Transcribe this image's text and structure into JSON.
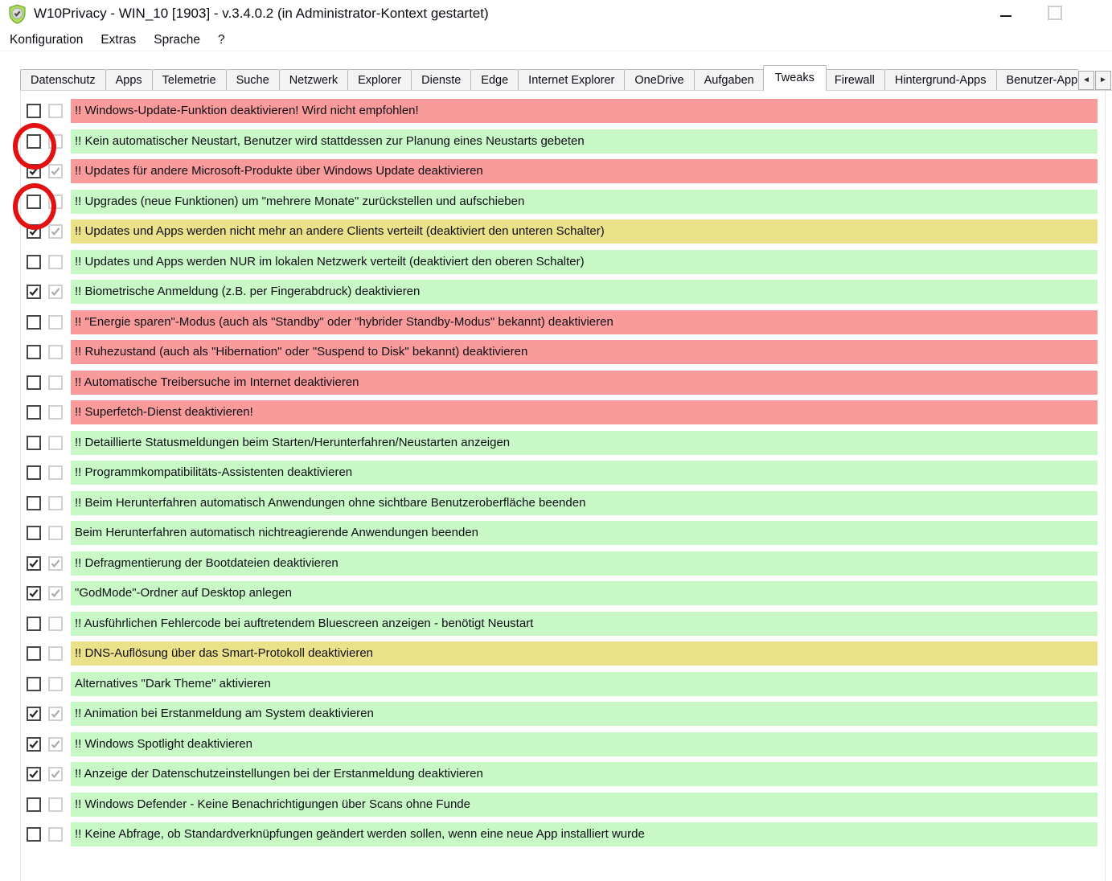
{
  "window": {
    "title": "W10Privacy - WIN_10 [1903]  - v.3.4.0.2 (in Administrator-Kontext gestartet)",
    "icon": "shield-check-icon"
  },
  "menu": {
    "items": [
      {
        "id": "konfiguration",
        "label": "Konfiguration"
      },
      {
        "id": "extras",
        "label": "Extras"
      },
      {
        "id": "sprache",
        "label": "Sprache"
      },
      {
        "id": "hilfe",
        "label": "?"
      }
    ]
  },
  "tabs": {
    "selected": "Tweaks",
    "scroll_left": "◄",
    "scroll_right": "►",
    "items": [
      {
        "id": "datenschutz",
        "label": "Datenschutz",
        "selected": false
      },
      {
        "id": "apps",
        "label": "Apps",
        "selected": false
      },
      {
        "id": "telemetrie",
        "label": "Telemetrie",
        "selected": false
      },
      {
        "id": "suche",
        "label": "Suche",
        "selected": false
      },
      {
        "id": "netzwerk",
        "label": "Netzwerk",
        "selected": false
      },
      {
        "id": "explorer",
        "label": "Explorer",
        "selected": false
      },
      {
        "id": "dienste",
        "label": "Dienste",
        "selected": false
      },
      {
        "id": "edge",
        "label": "Edge",
        "selected": false
      },
      {
        "id": "internet-explorer",
        "label": "Internet Explorer",
        "selected": false
      },
      {
        "id": "onedrive",
        "label": "OneDrive",
        "selected": false
      },
      {
        "id": "aufgaben",
        "label": "Aufgaben",
        "selected": false
      },
      {
        "id": "tweaks",
        "label": "Tweaks",
        "selected": true
      },
      {
        "id": "firewall",
        "label": "Firewall",
        "selected": false
      },
      {
        "id": "hintergrund-apps",
        "label": "Hintergrund-Apps",
        "selected": false
      },
      {
        "id": "benutzer-app",
        "label": "Benutzer-App",
        "selected": false
      }
    ]
  },
  "colors": {
    "row_red": "#fa9b9b",
    "row_green": "#c8f8c5",
    "row_yellow": "#ebe188",
    "annotation_circle": "#e31212",
    "check_primary": "#262626",
    "check_readonly": "#ababab"
  },
  "rows": [
    {
      "label": "!! Windows-Update-Funktion deaktivieren! Wird nicht empfohlen!",
      "color": "row_red",
      "checked": false,
      "checked_readonly": false,
      "circled": false
    },
    {
      "label": "!! Kein automatischer Neustart, Benutzer wird stattdessen zur Planung eines Neustarts gebeten",
      "color": "row_green",
      "checked": false,
      "checked_readonly": false,
      "circled": true
    },
    {
      "label": "!! Updates für andere Microsoft-Produkte über Windows Update deaktivieren",
      "color": "row_red",
      "checked": true,
      "checked_readonly": true,
      "circled": false
    },
    {
      "label": "!! Upgrades (neue Funktionen) um \"mehrere Monate\" zurückstellen und aufschieben",
      "color": "row_green",
      "checked": false,
      "checked_readonly": false,
      "circled": true
    },
    {
      "label": "!! Updates und Apps werden nicht mehr an andere Clients verteilt (deaktiviert den unteren Schalter)",
      "color": "row_yellow",
      "checked": true,
      "checked_readonly": true,
      "circled": false
    },
    {
      "label": "!! Updates und Apps werden NUR im lokalen Netzwerk verteilt (deaktiviert den oberen Schalter)",
      "color": "row_green",
      "checked": false,
      "checked_readonly": false,
      "circled": false
    },
    {
      "label": "!! Biometrische Anmeldung (z.B. per Fingerabdruck) deaktivieren",
      "color": "row_green",
      "checked": true,
      "checked_readonly": true,
      "circled": false
    },
    {
      "label": "!! \"Energie sparen\"-Modus (auch als \"Standby\" oder \"hybrider Standby-Modus\" bekannt) deaktivieren",
      "color": "row_red",
      "checked": false,
      "checked_readonly": false,
      "circled": false
    },
    {
      "label": "!! Ruhezustand (auch als \"Hibernation\" oder \"Suspend to Disk\" bekannt) deaktivieren",
      "color": "row_red",
      "checked": false,
      "checked_readonly": false,
      "circled": false
    },
    {
      "label": "!! Automatische Treibersuche im Internet deaktivieren",
      "color": "row_red",
      "checked": false,
      "checked_readonly": false,
      "circled": false
    },
    {
      "label": "!! Superfetch-Dienst deaktivieren!",
      "color": "row_red",
      "checked": false,
      "checked_readonly": false,
      "circled": false
    },
    {
      "label": "!! Detaillierte Statusmeldungen beim Starten/Herunterfahren/Neustarten anzeigen",
      "color": "row_green",
      "checked": false,
      "checked_readonly": false,
      "circled": false
    },
    {
      "label": "!! Programmkompatibilitäts-Assistenten deaktivieren",
      "color": "row_green",
      "checked": false,
      "checked_readonly": false,
      "circled": false
    },
    {
      "label": "!! Beim Herunterfahren automatisch Anwendungen ohne sichtbare Benutzeroberfläche beenden",
      "color": "row_green",
      "checked": false,
      "checked_readonly": false,
      "circled": false
    },
    {
      "label": "Beim Herunterfahren automatisch nichtreagierende Anwendungen beenden",
      "color": "row_green",
      "checked": false,
      "checked_readonly": false,
      "circled": false
    },
    {
      "label": "!! Defragmentierung der Bootdateien deaktivieren",
      "color": "row_green",
      "checked": true,
      "checked_readonly": true,
      "circled": false
    },
    {
      "label": "\"GodMode\"-Ordner auf Desktop anlegen",
      "color": "row_green",
      "checked": true,
      "checked_readonly": true,
      "circled": false
    },
    {
      "label": "!! Ausführlichen Fehlercode bei auftretendem Bluescreen anzeigen - benötigt Neustart",
      "color": "row_green",
      "checked": false,
      "checked_readonly": false,
      "circled": false
    },
    {
      "label": "!! DNS-Auflösung über das Smart-Protokoll deaktivieren",
      "color": "row_yellow",
      "checked": false,
      "checked_readonly": false,
      "circled": false
    },
    {
      "label": "Alternatives \"Dark Theme\" aktivieren",
      "color": "row_green",
      "checked": false,
      "checked_readonly": false,
      "circled": false
    },
    {
      "label": "!! Animation bei Erstanmeldung am System deaktivieren",
      "color": "row_green",
      "checked": true,
      "checked_readonly": true,
      "circled": false
    },
    {
      "label": "!! Windows Spotlight deaktivieren",
      "color": "row_green",
      "checked": true,
      "checked_readonly": true,
      "circled": false
    },
    {
      "label": "!! Anzeige der Datenschutzeinstellungen bei der Erstanmeldung deaktivieren",
      "color": "row_green",
      "checked": true,
      "checked_readonly": true,
      "circled": false
    },
    {
      "label": "!! Windows Defender - Keine Benachrichtigungen über Scans ohne Funde",
      "color": "row_green",
      "checked": false,
      "checked_readonly": false,
      "circled": false
    },
    {
      "label": "!! Keine Abfrage, ob Standardverknüpfungen geändert werden sollen, wenn eine neue App installiert wurde",
      "color": "row_green",
      "checked": false,
      "checked_readonly": false,
      "circled": false
    }
  ]
}
